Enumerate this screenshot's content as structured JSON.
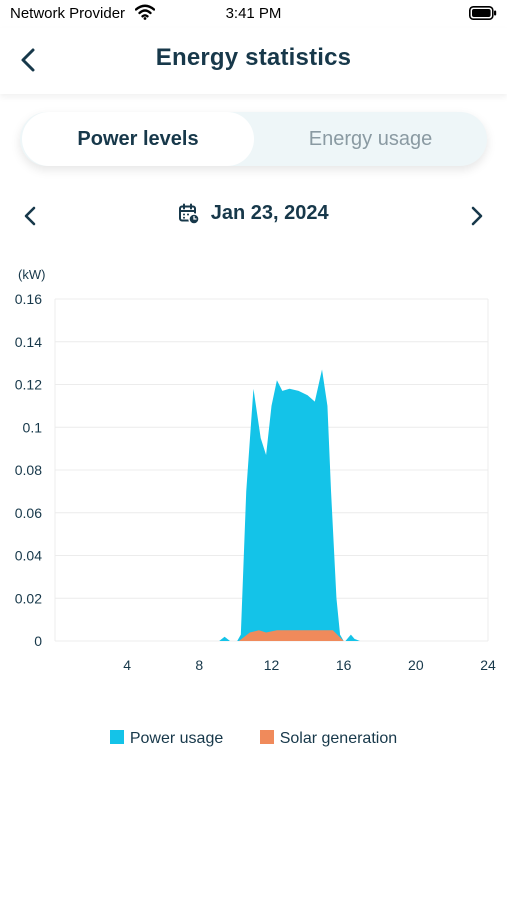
{
  "status_bar": {
    "carrier": "Network Provider",
    "time": "3:41 PM"
  },
  "header": {
    "title": "Energy statistics"
  },
  "tabs": [
    {
      "label": "Power levels",
      "active": true
    },
    {
      "label": "Energy usage",
      "active": false
    }
  ],
  "date_nav": {
    "date": "Jan 23, 2024"
  },
  "colors": {
    "power_usage": "#14c3e8",
    "solar_generation": "#f08a5b",
    "text_dark": "#17384a"
  },
  "chart_data": {
    "type": "area",
    "ylabel": "(kW)",
    "ylim": [
      0,
      0.16
    ],
    "yticks": [
      "0.16",
      "0.14",
      "0.12",
      "0.1",
      "0.08",
      "0.06",
      "0.04",
      "0.02",
      "0"
    ],
    "xlim": [
      0,
      24
    ],
    "xticks": [
      "4",
      "8",
      "12",
      "16",
      "20",
      "24"
    ],
    "grid": true,
    "legend": "bottom",
    "series": [
      {
        "name": "Power usage",
        "color": "#14c3e8",
        "x": [
          0,
          9.1,
          9.4,
          9.7,
          10.1,
          10.3,
          10.6,
          11.0,
          11.4,
          11.7,
          12.0,
          12.3,
          12.6,
          13.0,
          13.5,
          14.0,
          14.4,
          14.8,
          15.1,
          15.3,
          15.6,
          15.8,
          16.0,
          16.1,
          16.4,
          16.6,
          16.9,
          24
        ],
        "y": [
          0,
          0,
          0.002,
          0,
          0,
          0.003,
          0.07,
          0.118,
          0.095,
          0.087,
          0.11,
          0.122,
          0.117,
          0.118,
          0.117,
          0.115,
          0.112,
          0.127,
          0.11,
          0.07,
          0.02,
          0.003,
          0,
          0,
          0.003,
          0.001,
          0,
          0
        ]
      },
      {
        "name": "Solar generation",
        "color": "#f08a5b",
        "x": [
          0,
          10.2,
          10.8,
          11.3,
          11.7,
          12.3,
          13.5,
          14.5,
          15.4,
          16.0,
          24
        ],
        "y": [
          0,
          0,
          0.004,
          0.005,
          0.004,
          0.005,
          0.005,
          0.005,
          0.005,
          0,
          0
        ]
      }
    ]
  },
  "legend": {
    "items": [
      "Power usage",
      "Solar generation"
    ]
  }
}
